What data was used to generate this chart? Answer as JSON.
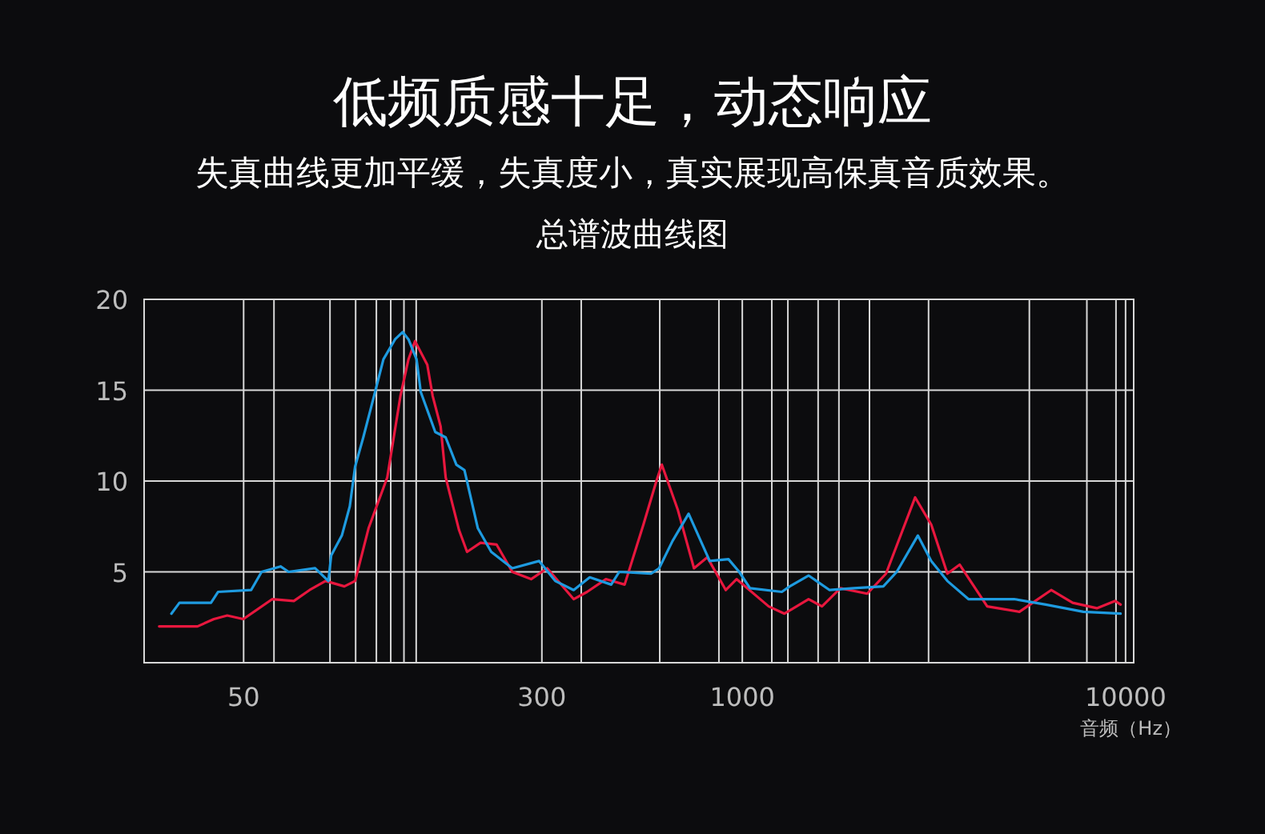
{
  "chart_data": {
    "type": "line",
    "title": "低频质感十足，动态响应",
    "subtitle": "失真曲线更加平缓，失真度小，真实展现高保真音质效果。",
    "annotations": [
      "总谱波曲线图"
    ],
    "xlabel": "音频（Hz）",
    "log": "x",
    "xlim": [
      27.5,
      10500
    ],
    "ylim": [
      0,
      20
    ],
    "xticks": [
      50,
      {
        "value": 60,
        "label": null
      },
      {
        "value": 84,
        "label": null
      },
      {
        "value": 98,
        "label": null
      },
      {
        "value": 111,
        "label": null
      },
      {
        "value": 121,
        "label": null
      },
      {
        "value": 131,
        "label": null
      },
      {
        "value": 141,
        "label": null
      },
      300,
      {
        "value": 380,
        "label": null
      },
      {
        "value": 609,
        "label": null
      },
      {
        "value": 869,
        "label": null
      },
      1000,
      {
        "value": 1194,
        "label": null
      },
      {
        "value": 1315,
        "label": null
      },
      {
        "value": 1577,
        "label": null
      },
      {
        "value": 1787,
        "label": null
      },
      {
        "value": 2147,
        "label": null
      },
      {
        "value": 3062,
        "label": null
      },
      {
        "value": 5610,
        "label": null
      },
      {
        "value": 7925,
        "label": null
      },
      {
        "value": 9440,
        "label": null
      },
      10000
    ],
    "yticks": [
      5,
      10,
      15,
      20
    ],
    "grid": true,
    "marker": "none",
    "line_style": "solid",
    "series": [
      {
        "color": "#e8173e",
        "x": [
          30.1,
          37.9,
          41.8,
          45.3,
          49.9,
          59.4,
          67.6,
          74.3,
          81.8,
          91.6,
          97.7,
          105.9,
          118.5,
          128.3,
          134.6,
          140.0,
          150.7,
          155.6,
          163.3,
          168.3,
          182.4,
          191.4,
          207.5,
          228.6,
          251.2,
          281.2,
          309.7,
          363.1,
          393.6,
          440.6,
          493.2,
          552.1,
          597.0,
          616.6,
          679.2,
          748.2,
          810.6,
          905.7,
          966.1,
          1172,
          1288,
          1489,
          1614,
          1803,
          2118,
          2371,
          2825,
          3112,
          3428,
          3690,
          4355,
          5284,
          6397,
          7278,
          8414,
          9397,
          9705
        ],
        "values": [
          2.0,
          2.0,
          2.4,
          2.6,
          2.4,
          3.5,
          3.4,
          4.0,
          4.5,
          4.2,
          4.5,
          7.4,
          10.2,
          14.7,
          16.7,
          17.7,
          16.4,
          14.7,
          13.0,
          10.2,
          7.3,
          6.1,
          6.6,
          6.5,
          5.0,
          4.6,
          5.2,
          3.5,
          3.9,
          4.6,
          4.3,
          7.6,
          10.0,
          10.9,
          8.4,
          5.2,
          5.8,
          4.0,
          4.6,
          3.1,
          2.7,
          3.5,
          3.1,
          4.1,
          3.8,
          4.9,
          9.1,
          7.6,
          4.9,
          5.4,
          3.1,
          2.8,
          4.0,
          3.3,
          3.0,
          3.4,
          3.2
        ]
      },
      {
        "color": "#1e9be0",
        "x": [
          32.4,
          34.0,
          41.1,
          42.9,
          52.3,
          55.7,
          62.4,
          65.5,
          76.8,
          83.2,
          84.6,
          90.2,
          94.6,
          97.7,
          102.6,
          109.2,
          115.8,
          124.2,
          130.0,
          134.6,
          141.3,
          144.9,
          158.1,
          168.3,
          179.5,
          188.4,
          204.2,
          221.3,
          251.2,
          295.1,
          325.1,
          363.1,
          399.9,
          455.0,
          477.5,
          578.1,
          606.7,
          657.7,
          724.4,
          822.2,
          920.4,
          981.7,
          1047,
          1268,
          1330,
          1489,
          1690,
          1954,
          2333,
          2529,
          2871,
          3112,
          3428,
          3890,
          5117,
          6194,
          7762,
          9705
        ],
        "values": [
          2.7,
          3.3,
          3.3,
          3.9,
          4.0,
          5.0,
          5.3,
          5.0,
          5.2,
          4.5,
          5.9,
          7.0,
          8.6,
          10.8,
          12.4,
          14.6,
          16.7,
          17.8,
          18.2,
          17.8,
          16.7,
          14.9,
          12.7,
          12.4,
          10.9,
          10.6,
          7.4,
          6.1,
          5.2,
          5.6,
          4.5,
          4.0,
          4.7,
          4.3,
          5.0,
          4.9,
          5.2,
          6.7,
          8.2,
          5.6,
          5.7,
          5.0,
          4.1,
          3.9,
          4.2,
          4.8,
          4.0,
          4.1,
          4.2,
          5.0,
          7.0,
          5.6,
          4.5,
          3.5,
          3.5,
          3.2,
          2.8,
          2.7
        ]
      }
    ]
  }
}
